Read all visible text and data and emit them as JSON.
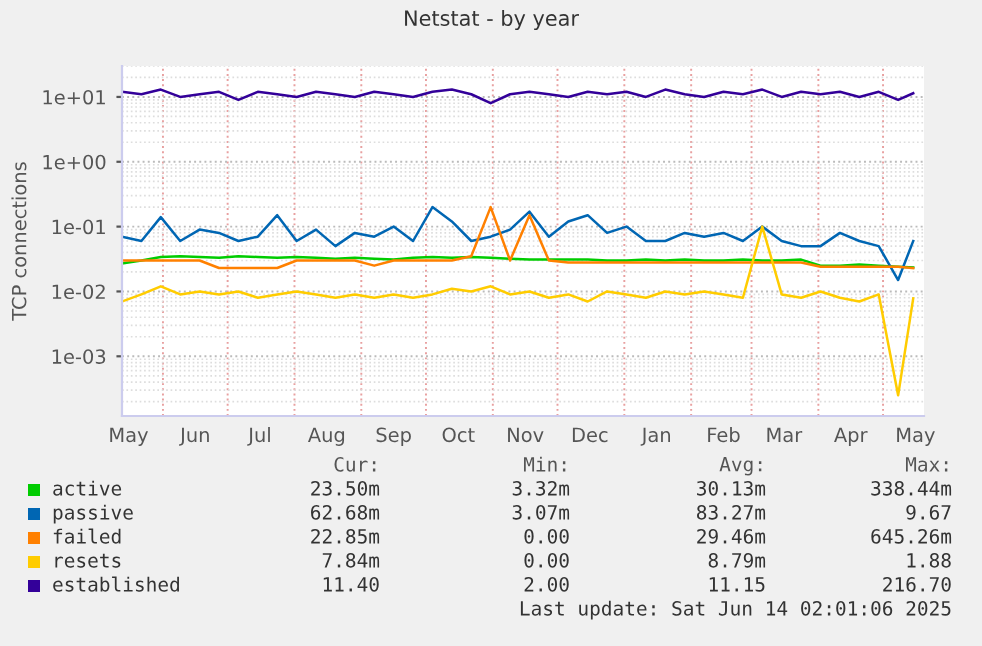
{
  "chart_data": {
    "type": "line",
    "title": "Netstat - by year",
    "ylabel": "TCP connections",
    "x": [
      "2024-05-13",
      "2024-05-22",
      "2024-05-31",
      "2024-06-09",
      "2024-06-18",
      "2024-06-27",
      "2024-07-06",
      "2024-07-15",
      "2024-07-24",
      "2024-08-02",
      "2024-08-11",
      "2024-08-20",
      "2024-08-29",
      "2024-09-07",
      "2024-09-16",
      "2024-09-25",
      "2024-10-04",
      "2024-10-13",
      "2024-10-22",
      "2024-10-31",
      "2024-11-09",
      "2024-11-18",
      "2024-11-27",
      "2024-12-06",
      "2024-12-15",
      "2024-12-24",
      "2025-01-02",
      "2025-01-11",
      "2025-01-20",
      "2025-01-29",
      "2025-02-07",
      "2025-02-16",
      "2025-02-25",
      "2025-03-06",
      "2025-03-15",
      "2025-03-24",
      "2025-04-02",
      "2025-04-11",
      "2025-04-20",
      "2025-04-29",
      "2025-05-08",
      "2025-05-15"
    ],
    "series": [
      {
        "name": "active",
        "color": "#00cc00",
        "values": [
          0.027,
          0.03,
          0.034,
          0.035,
          0.034,
          0.033,
          0.035,
          0.034,
          0.033,
          0.034,
          0.033,
          0.032,
          0.033,
          0.032,
          0.031,
          0.033,
          0.034,
          0.033,
          0.034,
          0.033,
          0.032,
          0.031,
          0.031,
          0.031,
          0.031,
          0.03,
          0.03,
          0.031,
          0.03,
          0.031,
          0.03,
          0.03,
          0.031,
          0.03,
          0.03,
          0.031,
          0.025,
          0.025,
          0.026,
          0.025,
          0.024,
          0.0235
        ]
      },
      {
        "name": "passive",
        "color": "#0066b3",
        "values": [
          0.07,
          0.06,
          0.14,
          0.06,
          0.09,
          0.08,
          0.06,
          0.07,
          0.15,
          0.06,
          0.09,
          0.05,
          0.08,
          0.07,
          0.1,
          0.06,
          0.2,
          0.12,
          0.06,
          0.07,
          0.09,
          0.17,
          0.07,
          0.12,
          0.15,
          0.08,
          0.1,
          0.06,
          0.06,
          0.08,
          0.07,
          0.08,
          0.06,
          0.1,
          0.06,
          0.05,
          0.05,
          0.08,
          0.06,
          0.05,
          0.015,
          0.06
        ]
      },
      {
        "name": "failed",
        "color": "#ff8000",
        "values": [
          0.03,
          0.03,
          0.03,
          0.03,
          0.03,
          0.023,
          0.023,
          0.023,
          0.023,
          0.03,
          0.03,
          0.03,
          0.03,
          0.025,
          0.03,
          0.03,
          0.03,
          0.03,
          0.035,
          0.2,
          0.03,
          0.15,
          0.03,
          0.028,
          0.028,
          0.028,
          0.028,
          0.028,
          0.028,
          0.028,
          0.028,
          0.028,
          0.028,
          0.028,
          0.028,
          0.028,
          0.024,
          0.024,
          0.024,
          0.024,
          0.024,
          0.02285
        ]
      },
      {
        "name": "resets",
        "color": "#ffcc00",
        "values": [
          0.007,
          0.009,
          0.012,
          0.009,
          0.01,
          0.009,
          0.01,
          0.008,
          0.009,
          0.01,
          0.009,
          0.008,
          0.009,
          0.008,
          0.009,
          0.008,
          0.009,
          0.011,
          0.01,
          0.012,
          0.009,
          0.01,
          0.008,
          0.009,
          0.007,
          0.01,
          0.009,
          0.008,
          0.01,
          0.009,
          0.01,
          0.009,
          0.008,
          0.1,
          0.009,
          0.008,
          0.01,
          0.008,
          0.007,
          0.009,
          0.00025,
          0.00784
        ]
      },
      {
        "name": "established",
        "color": "#330099",
        "values": [
          12,
          11,
          13,
          10,
          11,
          12,
          9,
          12,
          11,
          10,
          12,
          11,
          10,
          12,
          11,
          10,
          12,
          13,
          11,
          8,
          11,
          12,
          11,
          10,
          12,
          11,
          12,
          10,
          13,
          11,
          10,
          12,
          11,
          13,
          10,
          12,
          11,
          12,
          10,
          12,
          9,
          11.4
        ]
      }
    ],
    "log": "y",
    "ylim": [
      0.00012,
      30
    ],
    "yticks": [
      {
        "value": 0.001,
        "label": "1e-03"
      },
      {
        "value": 0.01,
        "label": "1e-02"
      },
      {
        "value": 0.1,
        "label": "1e-01"
      },
      {
        "value": 1,
        "label": "1e+00"
      },
      {
        "value": 10,
        "label": "1e+01"
      }
    ],
    "xlim": [
      "2024-05-13",
      "2025-05-20"
    ],
    "xticks": [
      {
        "value": "2024-05-16",
        "label": "May"
      },
      {
        "value": "2024-06-01",
        "label": null
      },
      {
        "value": "2024-06-16",
        "label": "Jun"
      },
      {
        "value": "2024-07-01",
        "label": null
      },
      {
        "value": "2024-07-16",
        "label": "Jul"
      },
      {
        "value": "2024-08-01",
        "label": null
      },
      {
        "value": "2024-08-16",
        "label": "Aug"
      },
      {
        "value": "2024-09-01",
        "label": null
      },
      {
        "value": "2024-09-16",
        "label": "Sep"
      },
      {
        "value": "2024-10-01",
        "label": null
      },
      {
        "value": "2024-10-16",
        "label": "Oct"
      },
      {
        "value": "2024-11-01",
        "label": null
      },
      {
        "value": "2024-11-16",
        "label": "Nov"
      },
      {
        "value": "2024-12-01",
        "label": null
      },
      {
        "value": "2024-12-16",
        "label": "Dec"
      },
      {
        "value": "2025-01-01",
        "label": null
      },
      {
        "value": "2025-01-16",
        "label": "Jan"
      },
      {
        "value": "2025-02-01",
        "label": null
      },
      {
        "value": "2025-02-16",
        "label": "Feb"
      },
      {
        "value": "2025-03-01",
        "label": null
      },
      {
        "value": "2025-03-16",
        "label": "Mar"
      },
      {
        "value": "2025-04-01",
        "label": null
      },
      {
        "value": "2025-04-16",
        "label": "Apr"
      },
      {
        "value": "2025-05-01",
        "label": null
      },
      {
        "value": "2025-05-16",
        "label": "May"
      }
    ],
    "grid": true,
    "legend": "bottom",
    "annotations": [
      "Cur:",
      "Min:",
      "Avg:",
      "Max:",
      "23.50m",
      "3.32m",
      "30.13m",
      "338.44m",
      "62.68m",
      "3.07m",
      "83.27m",
      "9.67",
      "22.85m",
      "0.00",
      "29.46m",
      "645.26m",
      "7.84m",
      "0.00",
      "8.79m",
      "1.88",
      "11.40",
      "2.00",
      "11.15",
      "216.70",
      "Last update: Sat Jun 14 02:01:06 2025"
    ]
  }
}
